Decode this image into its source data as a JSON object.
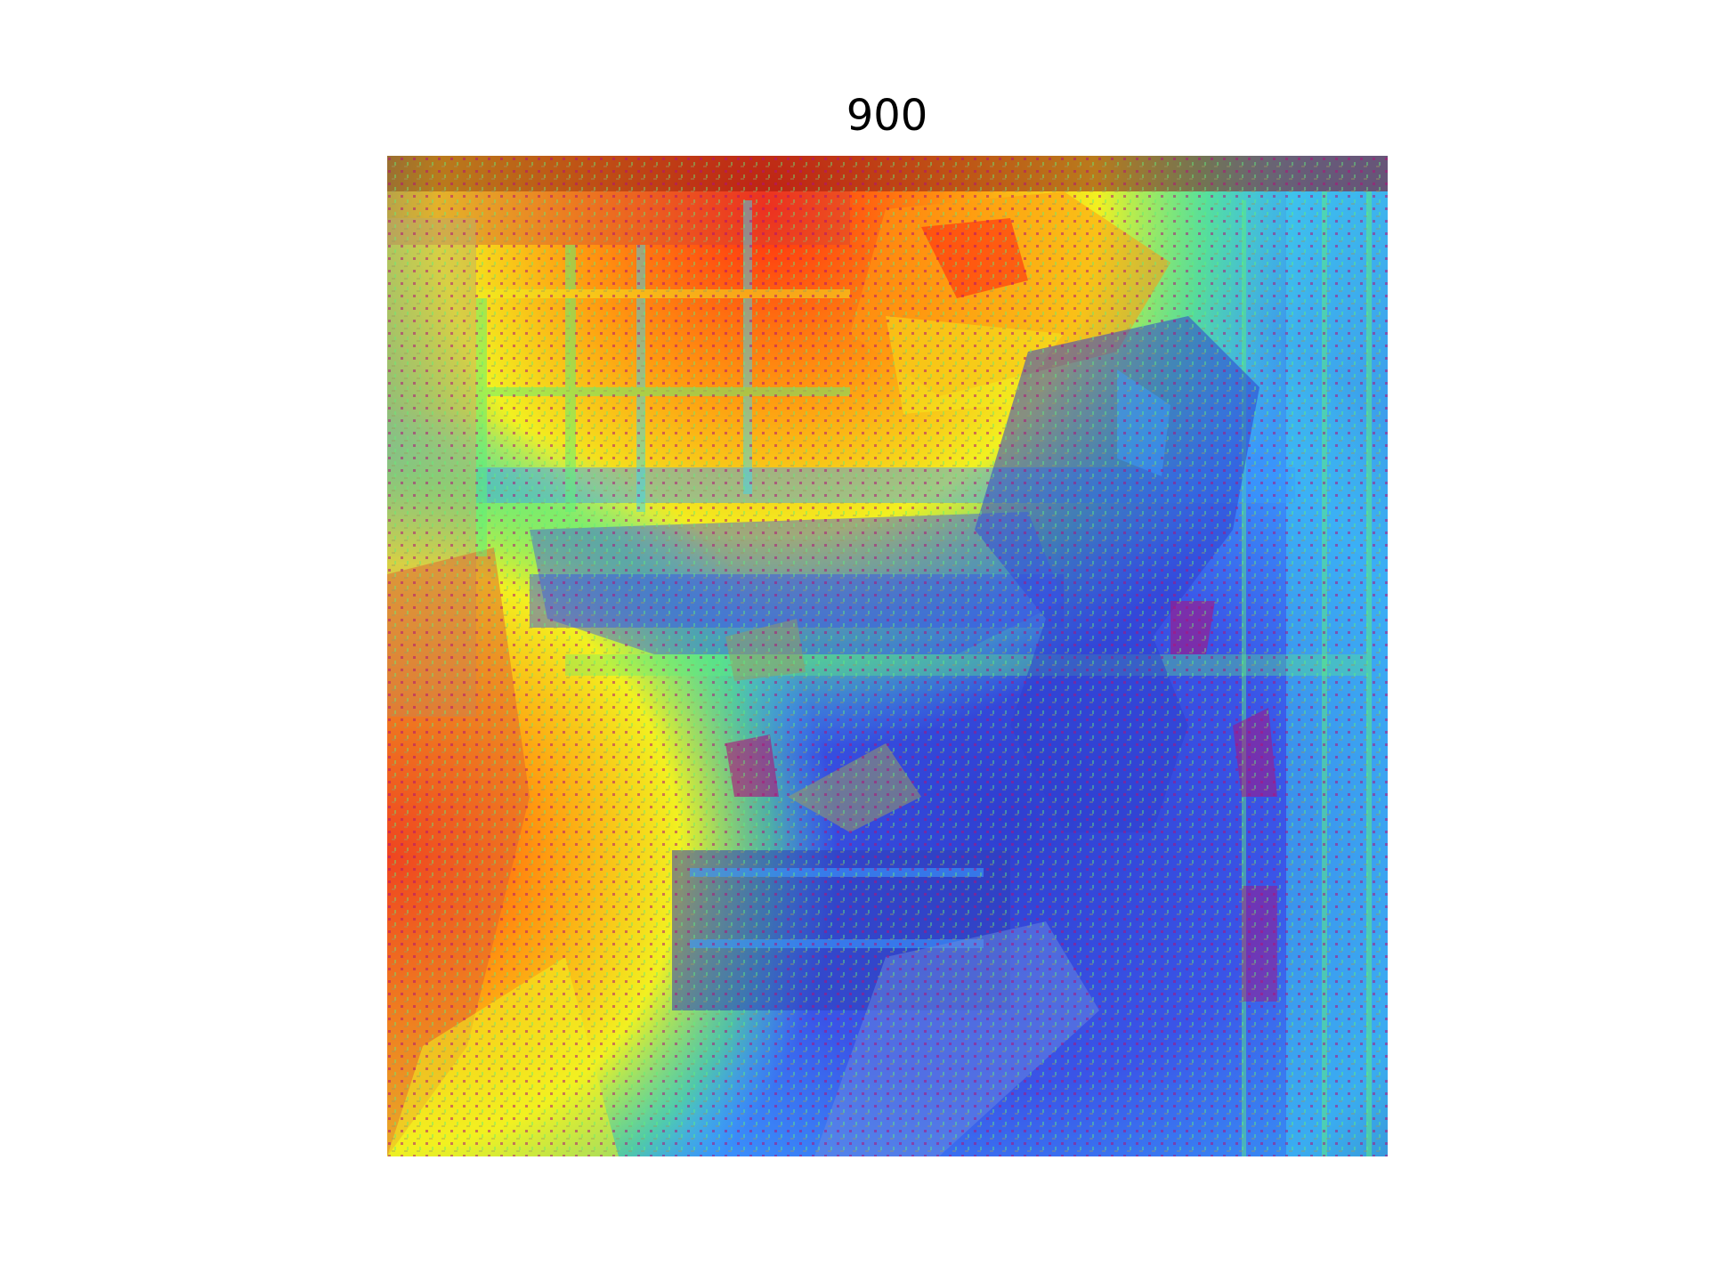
{
  "figure": {
    "title": "900"
  },
  "image": {
    "description_kind": "heatmap-overlay-on-photo",
    "colormap": "jet",
    "palette": {
      "dark_red": "#8b1a1a",
      "red": "#ff2a10",
      "orange": "#ff9a10",
      "yellow": "#f2f020",
      "green": "#5ff07a",
      "cyan": "#3fd6f0",
      "light_blue": "#3a9bff",
      "blue": "#3a55e8",
      "indigo": "#2f2fa8",
      "magenta": "#b0107a",
      "olive": "#9a9a60"
    }
  }
}
